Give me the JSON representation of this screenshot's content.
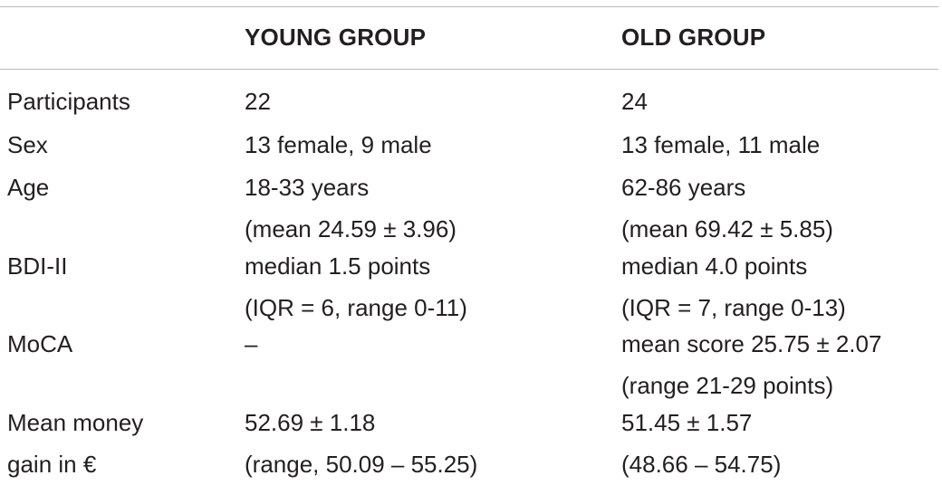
{
  "table": {
    "columns": [
      "",
      "YOUNG GROUP",
      "OLD GROUP"
    ],
    "rows": [
      {
        "label": [
          "Participants"
        ],
        "young": [
          "22"
        ],
        "old": [
          "24"
        ]
      },
      {
        "label": [
          "Sex"
        ],
        "young": [
          "13 female, 9 male"
        ],
        "old": [
          "13 female, 11 male"
        ]
      },
      {
        "label": [
          "Age"
        ],
        "young": [
          "18-33 years",
          "(mean 24.59 ± 3.96)"
        ],
        "old": [
          "62-86 years",
          "(mean 69.42 ± 5.85)"
        ]
      },
      {
        "label": [
          "BDI-II"
        ],
        "young": [
          "median 1.5 points",
          "(IQR = 6, range 0-11)"
        ],
        "old": [
          "median 4.0 points",
          "(IQR = 7, range 0-13)"
        ]
      },
      {
        "label": [
          "MoCA"
        ],
        "young": [
          "–"
        ],
        "old": [
          "mean score 25.75 ± 2.07",
          "(range 21-29 points)"
        ]
      },
      {
        "label": [
          "Mean money",
          "gain in €"
        ],
        "young": [
          "52.69 ± 1.18",
          "(range, 50.09 – 55.25)"
        ],
        "old": [
          "51.45 ± 1.57",
          "(48.66 – 54.75)"
        ]
      }
    ]
  }
}
